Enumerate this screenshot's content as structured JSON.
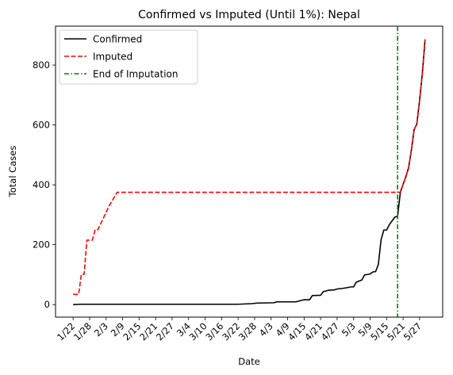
{
  "chart_data": {
    "type": "line",
    "title": "Confirmed vs Imputed (Until 1%): Nepal",
    "xlabel": "Date",
    "ylabel": "Total Cases",
    "x_tick_labels": [
      "1/22",
      "1/28",
      "2/3",
      "2/9",
      "2/15",
      "2/21",
      "2/27",
      "3/4",
      "3/10",
      "3/16",
      "3/22",
      "3/28",
      "4/3",
      "4/9",
      "4/15",
      "4/21",
      "4/27",
      "5/3",
      "5/9",
      "5/15",
      "5/21",
      "5/27"
    ],
    "y_ticks": [
      0,
      200,
      400,
      600,
      800
    ],
    "ylim": [
      -42,
      930
    ],
    "legend_position": "upper left",
    "grid": false,
    "series": [
      {
        "name": "Confirmed",
        "color": "#000000",
        "style": "solid",
        "points": [
          [
            "1/22",
            0
          ],
          [
            "1/25",
            1
          ],
          [
            "2/10",
            1
          ],
          [
            "3/22",
            1
          ],
          [
            "3/27",
            3
          ],
          [
            "3/29",
            5
          ],
          [
            "4/4",
            6
          ],
          [
            "4/5",
            9
          ],
          [
            "4/12",
            9
          ],
          [
            "4/14",
            14
          ],
          [
            "4/15",
            16
          ],
          [
            "4/17",
            16
          ],
          [
            "4/18",
            30
          ],
          [
            "4/21",
            31
          ],
          [
            "4/22",
            43
          ],
          [
            "4/24",
            48
          ],
          [
            "4/26",
            49
          ],
          [
            "4/27",
            52
          ],
          [
            "4/29",
            54
          ],
          [
            "5/1",
            57
          ],
          [
            "5/2",
            59
          ],
          [
            "5/3",
            59
          ],
          [
            "5/4",
            75
          ],
          [
            "5/6",
            82
          ],
          [
            "5/7",
            99
          ],
          [
            "5/9",
            102
          ],
          [
            "5/10",
            109
          ],
          [
            "5/11",
            110
          ],
          [
            "5/12",
            134
          ],
          [
            "5/13",
            217
          ],
          [
            "5/14",
            249
          ],
          [
            "5/15",
            249
          ],
          [
            "5/16",
            267
          ],
          [
            "5/18",
            292
          ],
          [
            "5/19",
            295
          ],
          [
            "5/20",
            375
          ],
          [
            "5/21",
            402
          ],
          [
            "5/22",
            427
          ],
          [
            "5/23",
            457
          ],
          [
            "5/24",
            515
          ],
          [
            "5/25",
            584
          ],
          [
            "5/26",
            603
          ],
          [
            "5/27",
            682
          ],
          [
            "5/28",
            772
          ],
          [
            "5/29",
            886
          ]
        ]
      },
      {
        "name": "Imputed",
        "color": "#ff0000",
        "style": "dashed",
        "points": [
          [
            "1/22",
            34
          ],
          [
            "1/24",
            34
          ],
          [
            "1/25",
            101
          ],
          [
            "1/26",
            101
          ],
          [
            "1/27",
            215
          ],
          [
            "1/29",
            215
          ],
          [
            "1/30",
            250
          ],
          [
            "1/31",
            250
          ],
          [
            "2/4",
            328
          ],
          [
            "2/7",
            375
          ],
          [
            "5/19",
            375
          ],
          [
            "5/20",
            375
          ],
          [
            "5/21",
            402
          ],
          [
            "5/22",
            427
          ],
          [
            "5/23",
            457
          ],
          [
            "5/24",
            515
          ],
          [
            "5/25",
            584
          ],
          [
            "5/26",
            603
          ],
          [
            "5/27",
            682
          ],
          [
            "5/28",
            772
          ],
          [
            "5/29",
            886
          ]
        ]
      },
      {
        "name": "End of Imputation",
        "color": "#008000",
        "style": "dashdot",
        "vertical_line_at": "5/19"
      }
    ]
  }
}
